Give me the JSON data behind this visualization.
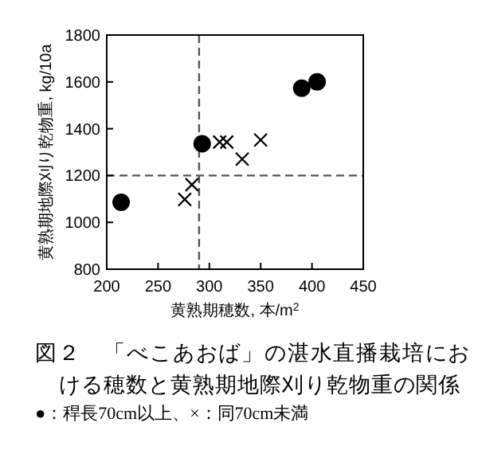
{
  "chart_data": {
    "type": "scatter",
    "title": "図２　「べこあおば」の湛水直播栽培における穂数と黄熟期地際刈り乾物重の関係",
    "xlabel": "黄熟期穂数, 本/m$^{2}$",
    "ylabel": "黄熟期地際刈り乾物重, kg/10a",
    "annotations": [
      "●：稈長70cm以上、×：同70cm未満"
    ],
    "xlim": [
      200,
      450
    ],
    "xticks": [
      200,
      250,
      300,
      350,
      400,
      450
    ],
    "ylim": [
      800,
      1800
    ],
    "yticks": [
      800,
      1000,
      1200,
      1400,
      1600,
      1800
    ],
    "grid": false,
    "ref_lines": [
      {
        "axis": "x",
        "value": 290,
        "color": "#555555",
        "line_style": "dashed"
      },
      {
        "axis": "y",
        "value": 1200,
        "color": "#555555",
        "line_style": "dashed"
      }
    ],
    "series": [
      {
        "color": "#000000",
        "marker": "circle",
        "x": [
          214,
          293,
          390,
          405
        ],
        "values": [
          1086,
          1336,
          1573,
          1600
        ]
      },
      {
        "color": "#000000",
        "marker": "cross",
        "x": [
          276,
          283,
          310,
          317,
          332,
          350
        ],
        "values": [
          1098,
          1161,
          1343,
          1343,
          1270,
          1352
        ]
      }
    ]
  }
}
